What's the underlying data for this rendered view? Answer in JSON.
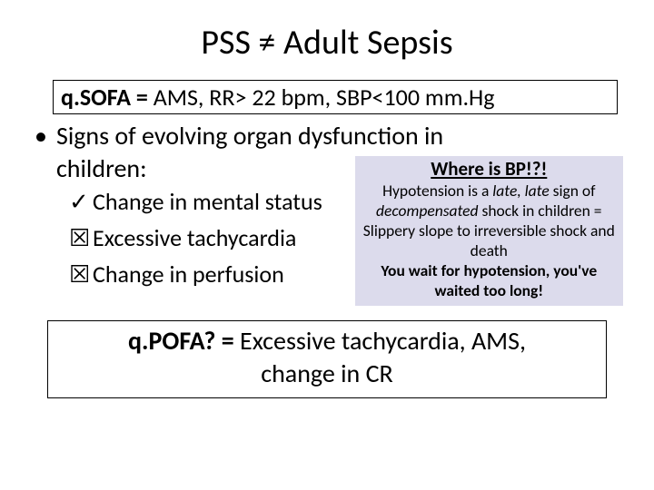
{
  "colors": {
    "background": "#ffffff",
    "text": "#000000",
    "border": "#000000",
    "callout_bg": "#dcdbec"
  },
  "title": "PSS ≠ Adult Sepsis",
  "qsofa": {
    "label_bold": "q.SOFA = ",
    "label_rest": "AMS, RR> 22 bpm, SBP<100 mm.Hg"
  },
  "bullet": {
    "line1": "Signs of evolving organ dysfunction in",
    "line2": "children:"
  },
  "signs": [
    {
      "mark": "✓",
      "text": "Change in mental status"
    },
    {
      "mark": "☒",
      "text": "Excessive tachycardia"
    },
    {
      "mark": "☒",
      "text": "Change in perfusion"
    }
  ],
  "callout": {
    "title": "Where is BP!?!",
    "l1a": "Hypotension is a ",
    "l1b_em": "late, late ",
    "l1c": "sign of ",
    "l2a_em": "decompensated ",
    "l2b": "shock in children = Slippery slope to irreversible shock and death",
    "l3_strong": "You wait for hypotension, you've waited too long!"
  },
  "qpofa": {
    "label_bold": "q.POFA? = ",
    "rest1": "Excessive tachycardia, AMS,",
    "rest2": "change in CR"
  }
}
